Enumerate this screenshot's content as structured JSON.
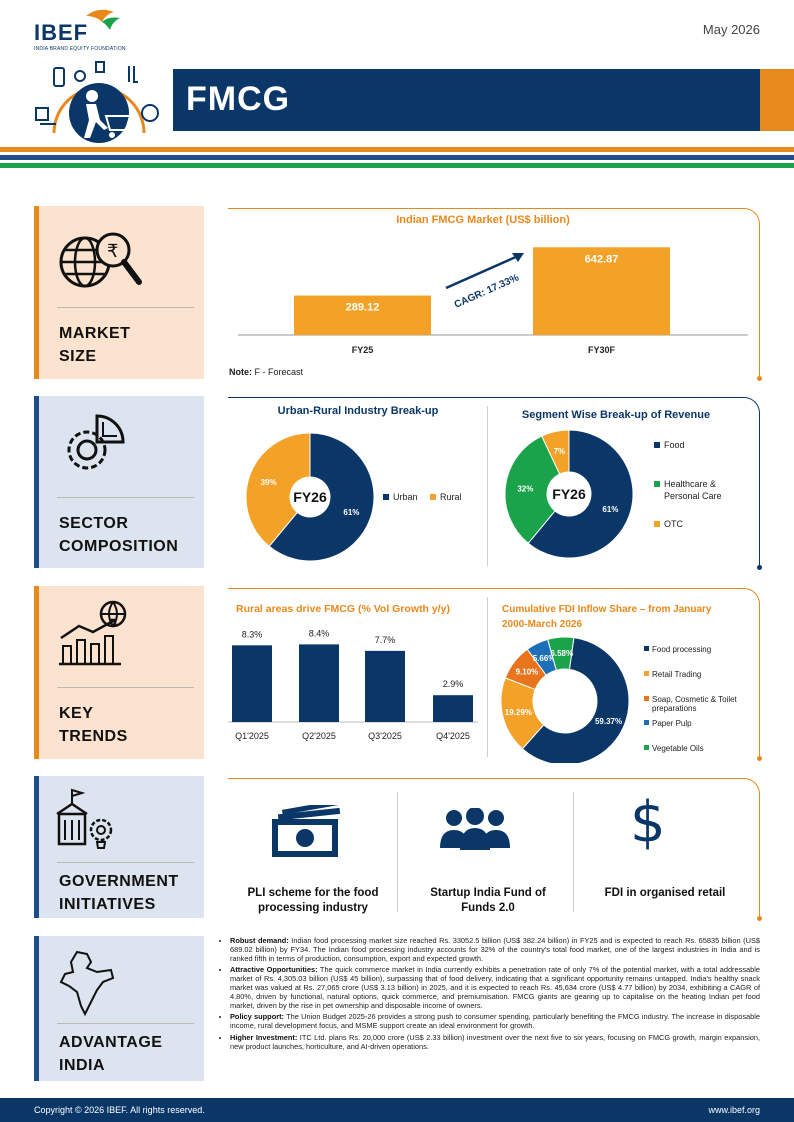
{
  "header": {
    "logo": "IBEF",
    "logo_sub": "INDIA BRAND EQUITY FOUNDATION",
    "date": "May 2026",
    "title": "FMCG"
  },
  "colors": {
    "navy": "#0b3768",
    "orange": "#e8891d",
    "green": "#1aa34a",
    "blue": "#1d6fb8"
  },
  "sections": {
    "market_size": "MARKET SIZE",
    "sector_composition": "SECTOR COMPOSITION",
    "key_trends": "KEY TRENDS",
    "government_initiatives": "GOVERNMENT INITIATIVES",
    "advantage_india": "ADVANTAGE INDIA"
  },
  "market_size": {
    "note_bold": "Note:",
    "note": " F - Forecast",
    "cagr": "CAGR: 17.33%"
  },
  "key_trends": {
    "initiatives": [
      {
        "label": "PLI scheme for the food processing industry",
        "icon": "money-icon"
      },
      {
        "label": "Startup India Fund of Funds 2.0",
        "icon": "people-icon"
      },
      {
        "label": "FDI in organised retail",
        "icon": "dollar-icon"
      }
    ]
  },
  "chart_data": [
    {
      "type": "bar",
      "title": "Indian FMCG Market (US$ billion)",
      "categories": [
        "FY25",
        "FY30F"
      ],
      "values": [
        289.12,
        642.87
      ],
      "value_labels": [
        "289.12",
        "642.87"
      ],
      "ylim": [
        0,
        700
      ]
    },
    {
      "type": "pie",
      "title": "Urban-Rural Industry Break-up",
      "center_label": "FY26",
      "categories": [
        "Urban",
        "Rural"
      ],
      "values": [
        61,
        39
      ],
      "value_labels": [
        "61%",
        "39%"
      ],
      "colors": [
        "#0b3768",
        "#f4a127"
      ]
    },
    {
      "type": "pie",
      "title": "Segment Wise Break-up of Revenue",
      "center_label": "FY26",
      "categories": [
        "Food",
        "Healthcare & Personal Care",
        "OTC"
      ],
      "values": [
        61,
        32,
        7
      ],
      "value_labels": [
        "61%",
        "32%",
        "7%"
      ],
      "colors": [
        "#0b3768",
        "#1aa34a",
        "#f4a127"
      ]
    },
    {
      "type": "bar",
      "title": "Rural areas drive FMCG (% Vol Growth y/y)",
      "categories": [
        "Q1'2025",
        "Q2'2025",
        "Q3'2025",
        "Q4'2025"
      ],
      "values": [
        8.3,
        8.4,
        7.7,
        2.9
      ],
      "value_labels": [
        "8.3%",
        "8.4%",
        "7.7%",
        "2.9%"
      ],
      "ylim": [
        0,
        10
      ]
    },
    {
      "type": "pie",
      "title": "Cumulative FDI Inflow Share – from January 2000-March 2026",
      "categories": [
        "Food processing",
        "Retail Trading",
        "Soap, Cosmetic & Toilet preparations",
        "Paper Pulp",
        "Vegetable Oils"
      ],
      "values": [
        59.37,
        19.29,
        9.1,
        5.66,
        6.58
      ],
      "value_labels": [
        "59.37%",
        "19.29%",
        "9.10%",
        "5.66%",
        "6.58%"
      ],
      "colors": [
        "#0b3768",
        "#f4a127",
        "#e8741d",
        "#1d6fb8",
        "#1aa34a"
      ]
    }
  ],
  "advantage": [
    {
      "head": "Robust demand:",
      "text": " Indian food processing market size reached Rs. 33052.5 billion (US$ 382.24 billion) in FY25 and is expected to reach Rs. 65835 billion (US$ 689.02 billion) by FY34. The Indian food processing industry accounts for 32% of the country's total food market, one of the largest industries in India and is ranked fifth in terms of production, consumption, export and expected growth."
    },
    {
      "head": "Attractive Opportunities:",
      "text": " The quick commerce market in India currently exhibits a penetration rate of only 7% of the potential market, with a total addressable market of Rs. 4,305.03 billion (US$ 45 billion), surpassing that of food delivery, indicating that a significant opportunity remains untapped. India's healthy snack market was valued at Rs. 27,065 crore (US$ 3.13 billion) in 2025, and it is expected to reach Rs. 45,634 crore (US$ 4.77 billion) by 2034, exhibiting a CAGR of 4.80%, driven by functional, natural options, quick commerce, and premiumisation. FMCG giants are gearing up to capitalise on the heating Indian pet food market, driven by the rise in pet ownership and disposable income of owners."
    },
    {
      "head": "Policy support:",
      "text": " The Union Budget 2025-26 provides a strong push to consumer spending, particularly benefiting the FMCG industry. The increase in disposable income, rural development focus, and MSME support create an ideal environment for growth."
    },
    {
      "head": "Higher Investment:",
      "text": " ITC Ltd. plans Rs. 20,000 crore (US$ 2.33 billion) investment over the next five to six years, focusing on FMCG growth, margin expansion, new product launches, horticulture, and AI-driven operations."
    }
  ],
  "footer": {
    "copyright": "Copyright © 2026 IBEF. All rights reserved.",
    "site": "www.ibef.org"
  }
}
